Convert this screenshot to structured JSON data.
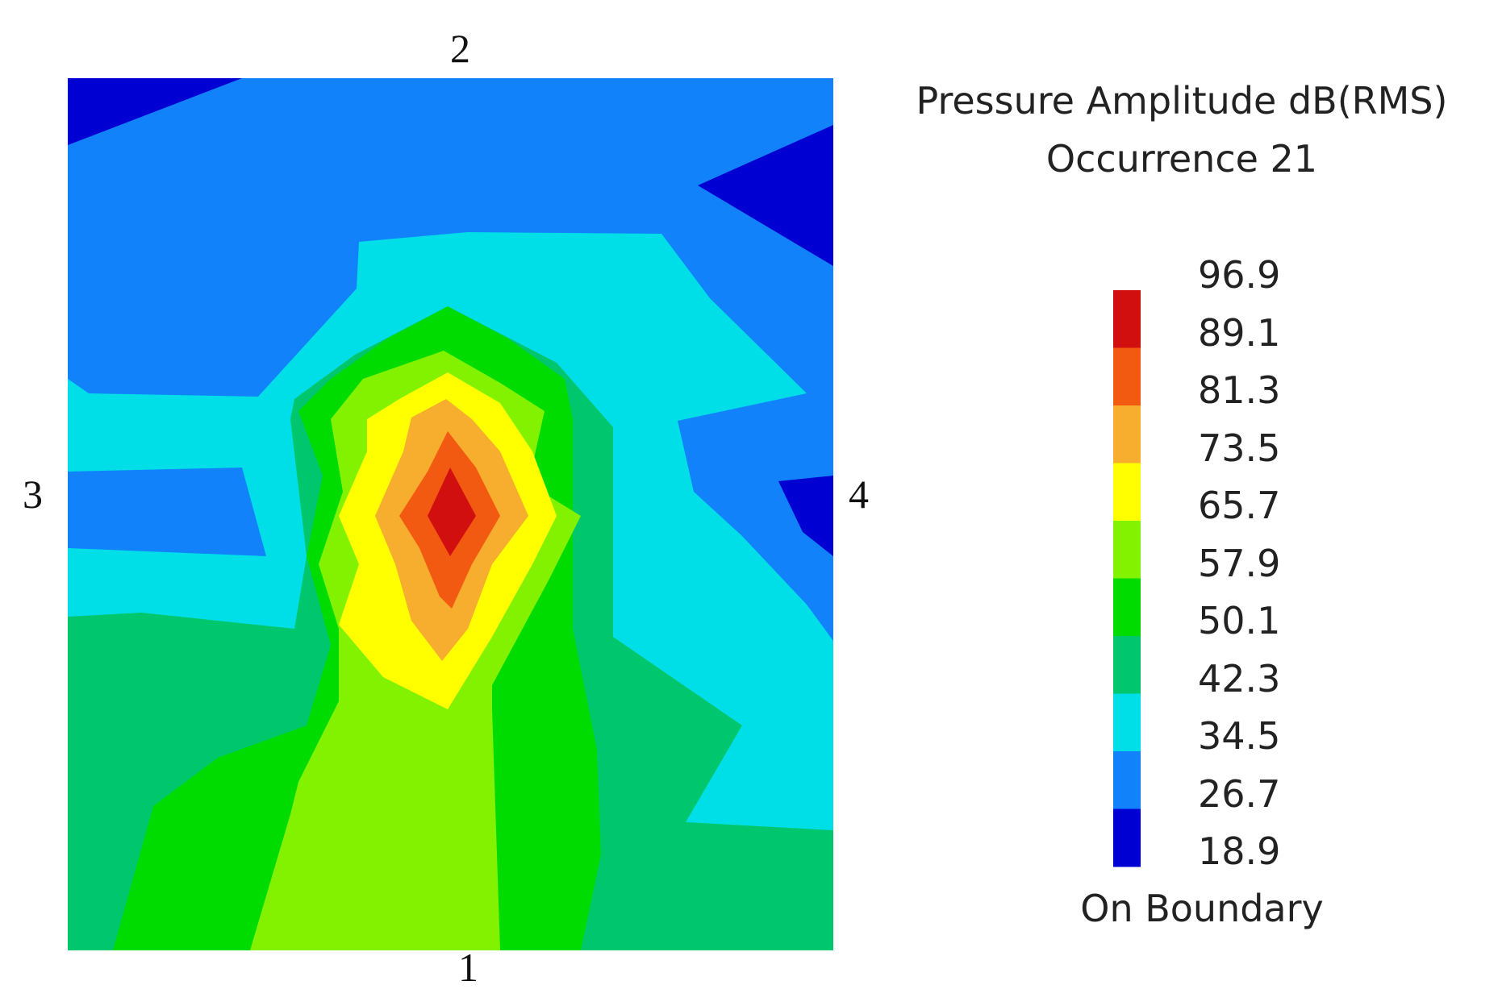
{
  "chart_data": {
    "type": "heatmap",
    "title": "Pressure Amplitude dB(RMS)",
    "subtitle": "Occurrence 21",
    "edge_labels": {
      "bottom": "1",
      "top": "2",
      "left": "3",
      "right": "4"
    },
    "colorbar": {
      "ticks": [
        "96.9",
        "89.1",
        "81.3",
        "73.5",
        "65.7",
        "57.9",
        "50.1",
        "42.3",
        "34.5",
        "26.7",
        "18.9"
      ],
      "min": 18.9,
      "max": 96.9,
      "step": 7.8,
      "band_colors": [
        "#d20f0f",
        "#f25a12",
        "#f7ad2d",
        "#ffff00",
        "#83f200",
        "#00dc00",
        "#00c76e",
        "#00dfe8",
        "#1282fa",
        "#0000d2"
      ],
      "footer": "On Boundary"
    },
    "field": {
      "peak_value": 96.9,
      "peak_location": "center-left, slightly above mid-height",
      "low_regions": [
        "top-left corner",
        "upper-right edge",
        "right edge near label 4"
      ]
    }
  }
}
